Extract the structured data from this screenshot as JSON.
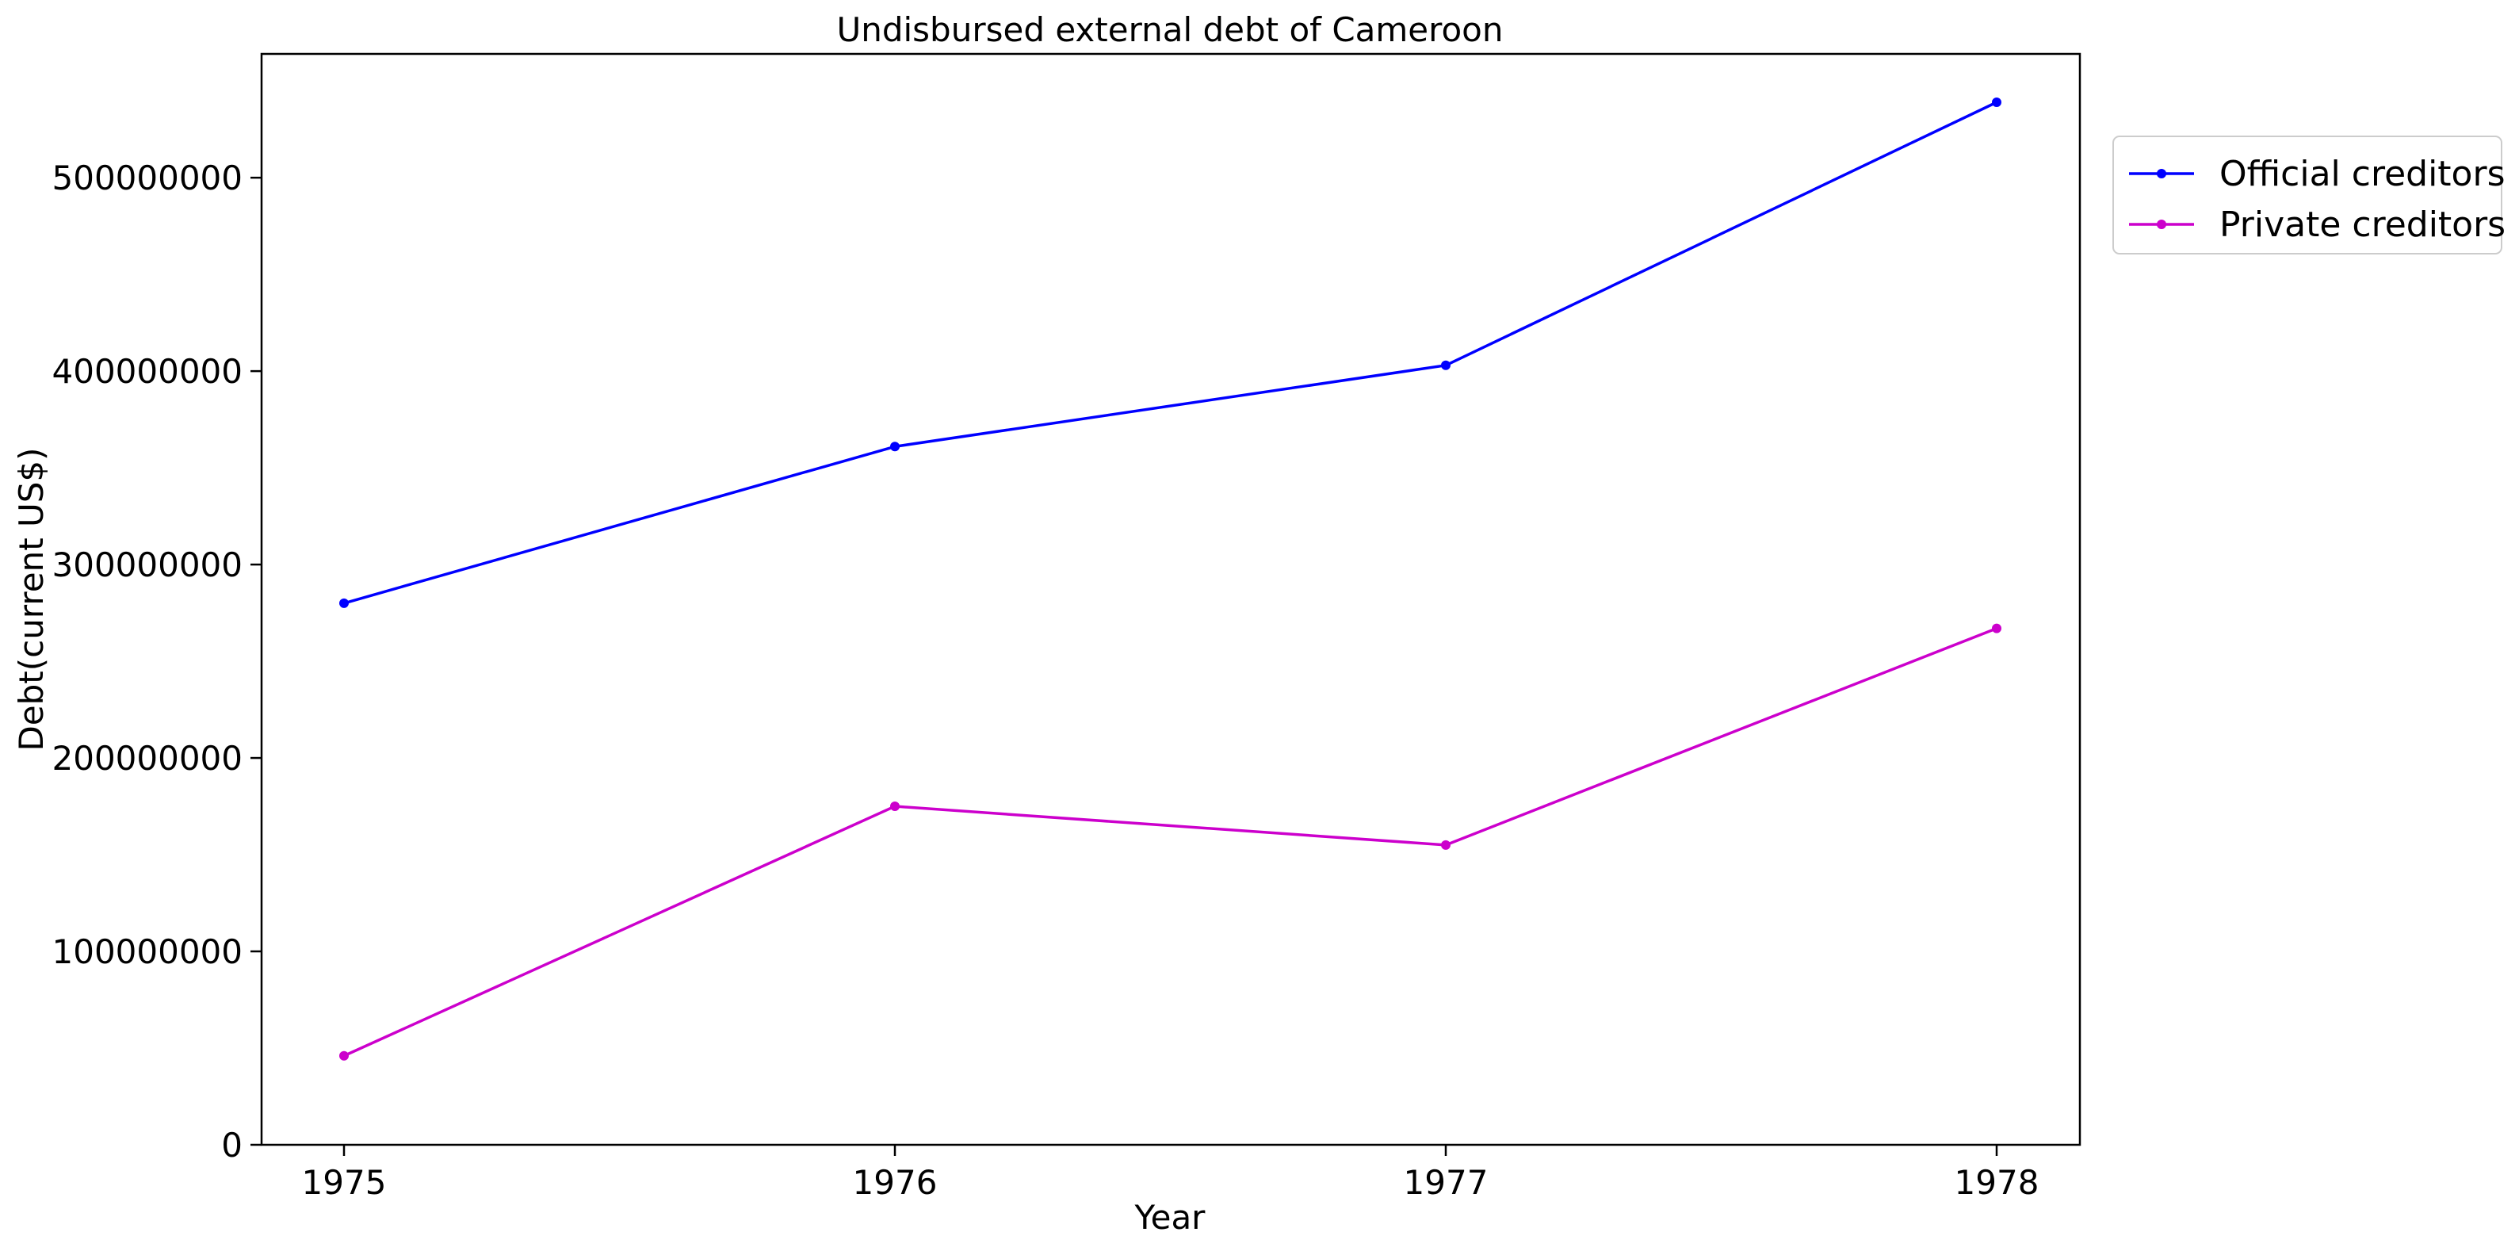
{
  "chart_data": {
    "type": "line",
    "title": "Undisbursed external debt of Cameroon",
    "xlabel": "Year",
    "ylabel": "Debt(current US$)",
    "categories": [
      "1975",
      "1976",
      "1977",
      "1978"
    ],
    "series": [
      {
        "name": "Official creditors",
        "color": "#0000ff",
        "values": [
          280000000,
          361000000,
          403000000,
          539000000
        ]
      },
      {
        "name": "Private creditors",
        "color": "#cc00cc",
        "values": [
          46000000,
          175000000,
          155000000,
          267000000
        ]
      }
    ],
    "ylim": [
      0,
      564000000
    ],
    "yticks": [
      0,
      100000000,
      200000000,
      300000000,
      400000000,
      500000000
    ],
    "ytick_labels": [
      "0",
      "100000000",
      "200000000",
      "300000000",
      "400000000",
      "500000000"
    ],
    "grid": false,
    "legend_position": "outside right, top"
  }
}
